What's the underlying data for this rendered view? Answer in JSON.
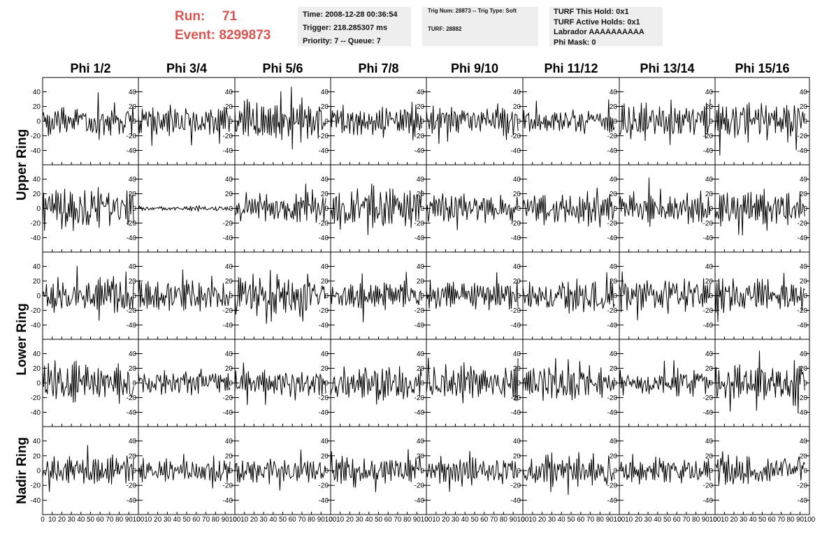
{
  "run_info": {
    "run_label": "Run:",
    "run_value": "71",
    "event_label": "Event:",
    "event_value": "8299873"
  },
  "time_box": {
    "time": "Time: 2008-12-28 00:36:54",
    "trigger": "Trigger: 218.285307 ms",
    "priority": "Priority: 7 -- Queue: 7"
  },
  "trig_box": {
    "trig": "Trig Num: 28873 -- Trig Type: Soft",
    "turf": "TURF: 28882"
  },
  "turf_box": {
    "this_hold": "TURF This Hold: 0x1",
    "active_holds": "TURF Active Holds: 0x1",
    "labrador": "Labrador AAAAAAAAAA",
    "phi_mask": "Phi Mask: 0"
  },
  "chart_data": {
    "type": "line",
    "column_titles": [
      "Phi 1/2",
      "Phi 3/4",
      "Phi 5/6",
      "Phi 7/8",
      "Phi 9/10",
      "Phi 11/12",
      "Phi 13/14",
      "Phi 15/16"
    ],
    "ring_titles": [
      {
        "label": "Upper Ring",
        "rows": [
          0,
          1
        ]
      },
      {
        "label": "Lower Ring",
        "rows": [
          2,
          3
        ]
      },
      {
        "label": "Nadir Ring",
        "rows": [
          4
        ]
      }
    ],
    "rows": 5,
    "xlim": [
      0,
      100
    ],
    "ylim": [
      -50,
      50
    ],
    "x_ticks": [
      "0",
      "10",
      "20",
      "30",
      "40",
      "50",
      "60",
      "70",
      "80",
      "90",
      "100"
    ],
    "y_ticks": [
      "-40",
      "-20",
      "0",
      "20",
      "40"
    ],
    "sample_step": 1,
    "samples_per_trace": 96,
    "traces": [
      {
        "row": 0,
        "col": 0,
        "amplitude": 14
      },
      {
        "row": 0,
        "col": 1,
        "amplitude": 13
      },
      {
        "row": 0,
        "col": 2,
        "amplitude": 17
      },
      {
        "row": 0,
        "col": 3,
        "amplitude": 13
      },
      {
        "row": 0,
        "col": 4,
        "amplitude": 12
      },
      {
        "row": 0,
        "col": 5,
        "amplitude": 10
      },
      {
        "row": 0,
        "col": 6,
        "amplitude": 16
      },
      {
        "row": 0,
        "col": 7,
        "amplitude": 17
      },
      {
        "row": 1,
        "col": 0,
        "amplitude": 20
      },
      {
        "row": 1,
        "col": 1,
        "amplitude": 2
      },
      {
        "row": 1,
        "col": 2,
        "amplitude": 13
      },
      {
        "row": 1,
        "col": 3,
        "amplitude": 17
      },
      {
        "row": 1,
        "col": 4,
        "amplitude": 14
      },
      {
        "row": 1,
        "col": 5,
        "amplitude": 14
      },
      {
        "row": 1,
        "col": 6,
        "amplitude": 13
      },
      {
        "row": 1,
        "col": 7,
        "amplitude": 15
      },
      {
        "row": 2,
        "col": 0,
        "amplitude": 15
      },
      {
        "row": 2,
        "col": 1,
        "amplitude": 14
      },
      {
        "row": 2,
        "col": 2,
        "amplitude": 20
      },
      {
        "row": 2,
        "col": 3,
        "amplitude": 12
      },
      {
        "row": 2,
        "col": 4,
        "amplitude": 13
      },
      {
        "row": 2,
        "col": 5,
        "amplitude": 15
      },
      {
        "row": 2,
        "col": 6,
        "amplitude": 15
      },
      {
        "row": 2,
        "col": 7,
        "amplitude": 15
      },
      {
        "row": 3,
        "col": 0,
        "amplitude": 17
      },
      {
        "row": 3,
        "col": 1,
        "amplitude": 12
      },
      {
        "row": 3,
        "col": 2,
        "amplitude": 11
      },
      {
        "row": 3,
        "col": 3,
        "amplitude": 16
      },
      {
        "row": 3,
        "col": 4,
        "amplitude": 15
      },
      {
        "row": 3,
        "col": 5,
        "amplitude": 15
      },
      {
        "row": 3,
        "col": 6,
        "amplitude": 12
      },
      {
        "row": 3,
        "col": 7,
        "amplitude": 17
      },
      {
        "row": 4,
        "col": 0,
        "amplitude": 13
      },
      {
        "row": 4,
        "col": 1,
        "amplitude": 10
      },
      {
        "row": 4,
        "col": 2,
        "amplitude": 11
      },
      {
        "row": 4,
        "col": 3,
        "amplitude": 11
      },
      {
        "row": 4,
        "col": 4,
        "amplitude": 11
      },
      {
        "row": 4,
        "col": 5,
        "amplitude": 14
      },
      {
        "row": 4,
        "col": 6,
        "amplitude": 11
      },
      {
        "row": 4,
        "col": 7,
        "amplitude": 13
      }
    ],
    "line_color": "#000000",
    "grid": false
  }
}
